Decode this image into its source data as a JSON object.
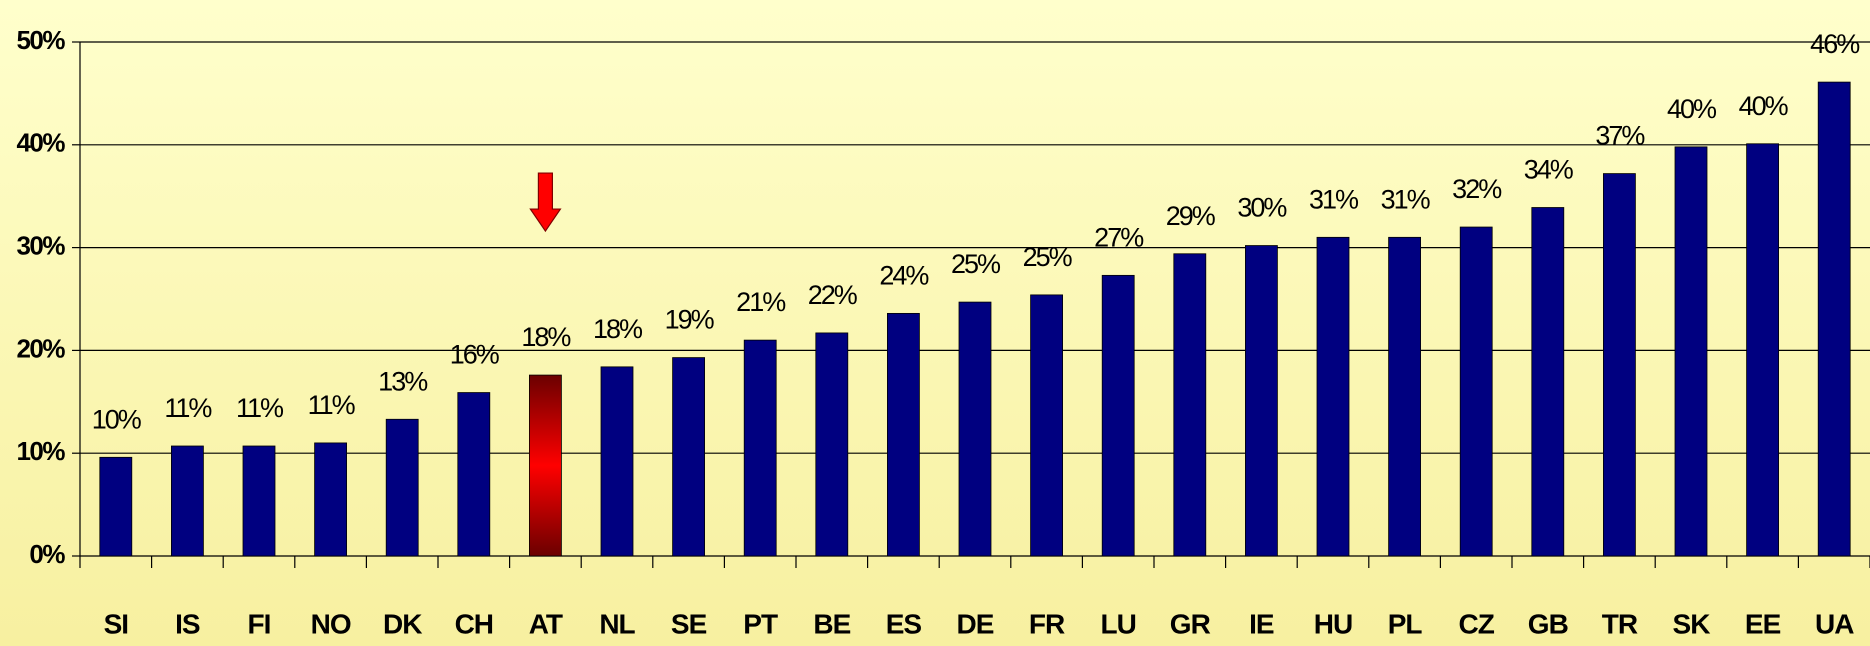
{
  "chart_data": {
    "type": "bar",
    "categories": [
      "SI",
      "IS",
      "FI",
      "NO",
      "DK",
      "CH",
      "AT",
      "NL",
      "SE",
      "PT",
      "BE",
      "ES",
      "DE",
      "FR",
      "LU",
      "GR",
      "IE",
      "HU",
      "PL",
      "CZ",
      "GB",
      "TR",
      "SK",
      "EE",
      "UA"
    ],
    "values": [
      9.6,
      10.7,
      10.7,
      11.0,
      13.3,
      15.9,
      17.6,
      18.4,
      19.3,
      21.0,
      21.7,
      23.6,
      24.7,
      25.4,
      27.3,
      29.4,
      30.2,
      31.0,
      31.0,
      32.0,
      33.9,
      37.2,
      39.8,
      40.1,
      46.1
    ],
    "value_labels": [
      "10%",
      "11%",
      "11%",
      "11%",
      "13%",
      "16%",
      "18%",
      "18%",
      "19%",
      "21%",
      "22%",
      "24%",
      "25%",
      "25%",
      "27%",
      "29%",
      "30%",
      "31%",
      "31%",
      "32%",
      "34%",
      "37%",
      "40%",
      "40%",
      "46%"
    ],
    "color": "#000080",
    "colors": [
      "#000080",
      "#000080",
      "#000080",
      "#000080",
      "#000080",
      "#000080",
      "#ff0000",
      "#000080",
      "#000080",
      "#000080",
      "#000080",
      "#000080",
      "#000080",
      "#000080",
      "#000080",
      "#000080",
      "#000080",
      "#000080",
      "#000080",
      "#000080",
      "#000080",
      "#000080",
      "#000080",
      "#000080",
      "#000080"
    ],
    "ylim": [
      0,
      50
    ],
    "yticks": [
      {
        "value": 0,
        "label": "0%"
      },
      {
        "value": 10,
        "label": "10%"
      },
      {
        "value": 20,
        "label": "20%"
      },
      {
        "value": 30,
        "label": "30%"
      },
      {
        "value": 40,
        "label": "40%"
      },
      {
        "value": 50,
        "label": "50%"
      }
    ],
    "grid": true
  }
}
